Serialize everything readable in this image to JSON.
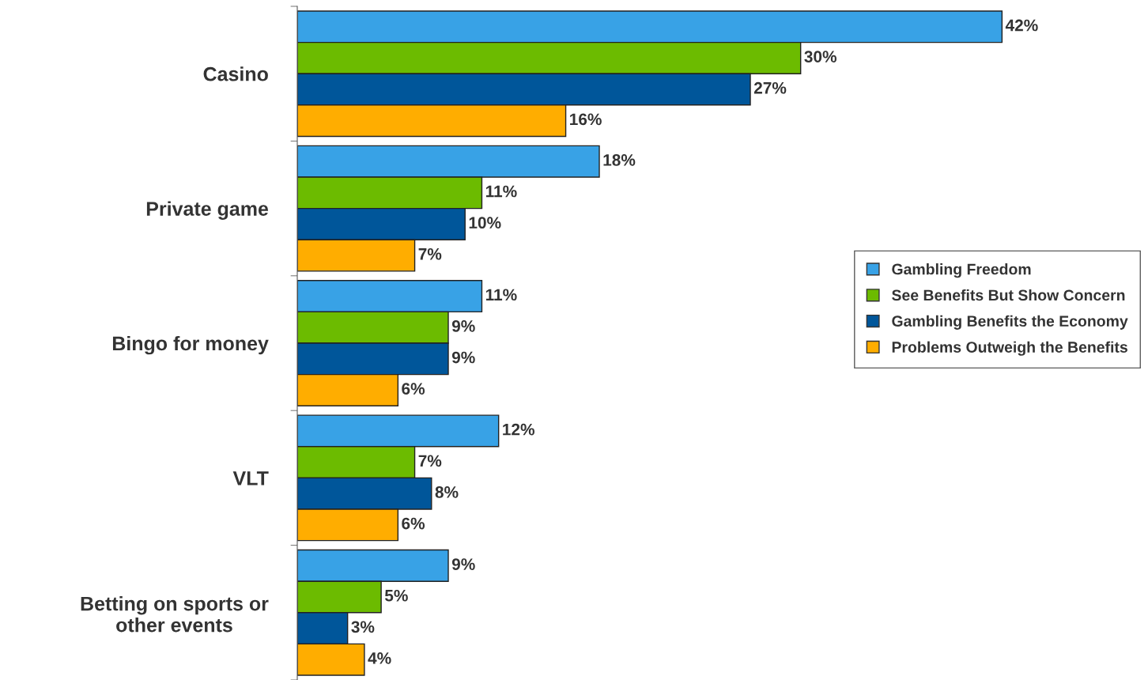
{
  "chart_data": {
    "type": "bar",
    "orientation": "horizontal",
    "categories": [
      "Casino",
      "Private game",
      "Bingo for money",
      "VLT",
      "Betting on sports or\nother events"
    ],
    "series": [
      {
        "name": "Gambling Freedom",
        "color": "#38a2e6",
        "values": [
          42,
          18,
          11,
          12,
          9
        ],
        "value_labels": [
          "42%",
          "18%",
          "11%",
          "12%",
          "9%"
        ]
      },
      {
        "name": "See Benefits But Show Concern",
        "color": "#6cbb00",
        "values": [
          30,
          11,
          9,
          7,
          5
        ],
        "value_labels": [
          "30%",
          "11%",
          "9%",
          "7%",
          "5%"
        ]
      },
      {
        "name": "Gambling Benefits the Economy",
        "color": "#00569a",
        "values": [
          27,
          10,
          9,
          8,
          3
        ],
        "value_labels": [
          "27%",
          "10%",
          "9%",
          "8%",
          "3%"
        ]
      },
      {
        "name": "Problems Outweigh the Benefits",
        "color": "#ffad00",
        "values": [
          16,
          7,
          6,
          6,
          4
        ],
        "value_labels": [
          "16%",
          "7%",
          "6%",
          "6%",
          "4%"
        ]
      }
    ],
    "legend": "right",
    "grid": false
  }
}
